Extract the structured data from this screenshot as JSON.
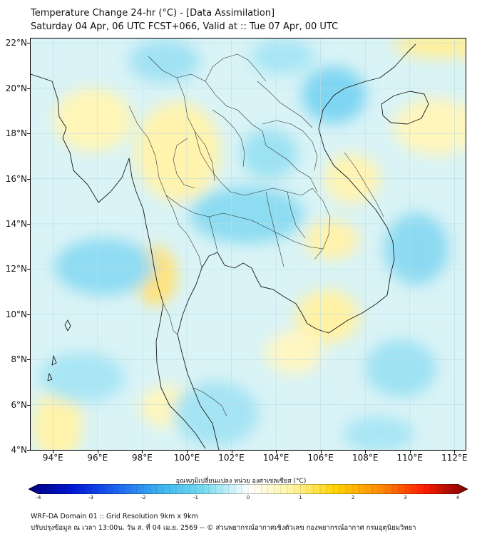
{
  "header": {
    "title_line1": "Temperature Change 24-hr (°C) - [Data Assimilation]",
    "title_line2": "Saturday 04 Apr, 06 UTC FCST+066, Valid at :: Tue 07 Apr, 00 UTC"
  },
  "map": {
    "lat_labels": [
      "22°N",
      "20°N",
      "18°N",
      "16°N",
      "14°N",
      "12°N",
      "10°N",
      "8°N",
      "6°N",
      "4°N"
    ],
    "lon_labels": [
      "94°E",
      "96°E",
      "98°E",
      "100°E",
      "102°E",
      "104°E",
      "106°E",
      "108°E",
      "110°E",
      "112°E"
    ],
    "extent": {
      "lon": [
        93,
        112.5
      ],
      "lat": [
        4,
        22.2
      ]
    },
    "colors": {
      "ocean_base": "#d9f3f6",
      "land_outline": "#1a1a1a",
      "grid": "#bcdde3"
    }
  },
  "colorbar": {
    "label": "อุณหภูมิเปลี่ยนแปลง หน่วย องศาเซลเซียส (°C)",
    "ticks": [
      "-4",
      "-3",
      "-2",
      "-1",
      "0",
      "1",
      "2",
      "3",
      "4"
    ],
    "range": [
      -4,
      4
    ],
    "colors": [
      "#00007a",
      "#0018d6",
      "#1e64f0",
      "#3cb4f0",
      "#78dcf0",
      "#ffffff",
      "#fff5a0",
      "#ffd200",
      "#ff8c00",
      "#ff1e00",
      "#7a0000"
    ]
  },
  "footer": {
    "line1": "WRF-DA Domain 01 :: Grid Resolution 9km x 9km",
    "line2": "ปรับปรุงข้อมูล ณ เวลา 13:00น. วัน ส. ที่ 04 เม.ย. 2569 -- © ส่วนพยากรณ์อากาศเชิงตัวเลข กองพยากรณ์อากาศ กรมอุตุนิยมวิทยา"
  }
}
